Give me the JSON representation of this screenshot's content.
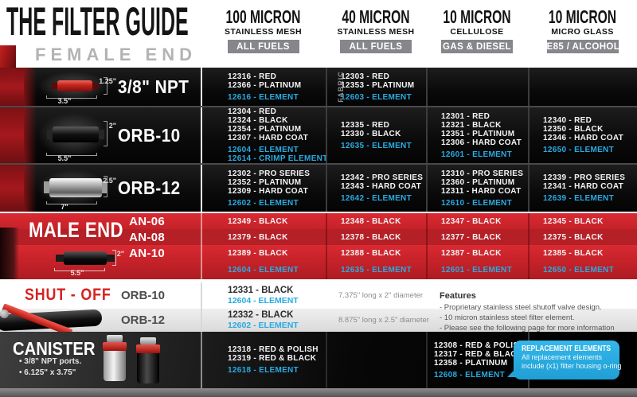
{
  "page": {
    "title": "THE FILTER GUIDE",
    "subtitle": "FEMALE END"
  },
  "columns": [
    {
      "micron": "100 MICRON",
      "media": "STAINLESS MESH",
      "fuel": "ALL FUELS"
    },
    {
      "micron": "40 MICRON",
      "media": "STAINLESS MESH",
      "fuel": "ALL FUELS"
    },
    {
      "micron": "10 MICRON",
      "media": "CELLULOSE",
      "fuel": "GAS & DIESEL"
    },
    {
      "micron": "10 MICRON",
      "media": "MICRO GLASS",
      "fuel": "E85 / ALCOHOL"
    }
  ],
  "female_end": {
    "rows": [
      {
        "label": "3/8\" NPT",
        "dims": {
          "height": "1.25\"",
          "length": "3.5\""
        },
        "cells": [
          {
            "parts": [
              "12316 - RED",
              "12366 - PLATINUM"
            ],
            "elements": [
              "12616 - ELEMENT"
            ]
          },
          {
            "tag": "FABRIC",
            "parts": [
              "12303 - RED",
              "12353 - PLATINUM"
            ],
            "elements": [
              "12603 - ELEMENT"
            ]
          },
          {
            "parts": [],
            "elements": []
          },
          {
            "parts": [],
            "elements": []
          }
        ]
      },
      {
        "label": "ORB-10",
        "dims": {
          "height": "2\"",
          "length": "5.5\""
        },
        "cells": [
          {
            "parts": [
              "12304 - RED",
              "12324 - BLACK",
              "12354 - PLATINUM",
              "12307 - HARD COAT"
            ],
            "elements": [
              "12604 - ELEMENT",
              "12614 - CRIMP ELEMENT"
            ]
          },
          {
            "parts": [
              "12335 - RED",
              "12330 - BLACK"
            ],
            "elements": [
              "12635 - ELEMENT"
            ]
          },
          {
            "parts": [
              "12301 - RED",
              "12321 - BLACK",
              "12351 - PLATINUM",
              "12306 - HARD COAT"
            ],
            "elements": [
              "12601 - ELEMENT"
            ]
          },
          {
            "parts": [
              "12340 - RED",
              "12350 - BLACK",
              "12346 - HARD COAT"
            ],
            "elements": [
              "12650 - ELEMENT"
            ]
          }
        ]
      },
      {
        "label": "ORB-12",
        "dims": {
          "height": "2.5\"",
          "length": "7\""
        },
        "cells": [
          {
            "parts": [
              "12302 - PRO SERIES",
              "12352 - PLATINUM",
              "12309 - HARD COAT"
            ],
            "elements": [
              "12602 - ELEMENT"
            ]
          },
          {
            "parts": [
              "12342 - PRO SERIES",
              "12343 - HARD COAT"
            ],
            "elements": [
              "12642 - ELEMENT"
            ]
          },
          {
            "parts": [
              "12310 - PRO SERIES",
              "12360 - PLATINUM",
              "12311 - HARD COAT"
            ],
            "elements": [
              "12610 - ELEMENT"
            ]
          },
          {
            "parts": [
              "12339 - PRO SERIES",
              "12341 - HARD COAT"
            ],
            "elements": [
              "12639 - ELEMENT"
            ]
          }
        ]
      }
    ]
  },
  "male_end": {
    "title": "MALE END",
    "dims": {
      "height": "2\"",
      "length": "5.5\""
    },
    "rows": [
      {
        "label": "AN-06",
        "parts": [
          "12349 - BLACK",
          "12348 - BLACK",
          "12347 - BLACK",
          "12345 - BLACK"
        ]
      },
      {
        "label": "AN-08",
        "parts": [
          "12379 - BLACK",
          "12378 - BLACK",
          "12377 - BLACK",
          "12375 - BLACK"
        ]
      },
      {
        "label": "AN-10",
        "parts": [
          "12389 - BLACK",
          "12388 - BLACK",
          "12387 - BLACK",
          "12385 - BLACK"
        ]
      },
      {
        "label": "",
        "parts": [
          "12604 - ELEMENT",
          "12635 - ELEMENT",
          "12601 - ELEMENT",
          "12650 - ELEMENT"
        ]
      }
    ]
  },
  "shut_off": {
    "title": "SHUT - OFF",
    "rows": [
      {
        "label": "ORB-10",
        "part": "12331 - BLACK",
        "element": "12604 - ELEMENT",
        "size": "7.375\" long x 2\" diameter"
      },
      {
        "label": "ORB-12",
        "part": "12332 - BLACK",
        "element": "12602 - ELEMENT",
        "size": "8.875\" long x 2.5\" diameter"
      }
    ],
    "features": {
      "title": "Features",
      "items": [
        "- Proprietary stainless steel shutoff valve design.",
        "- 10 micron stainless steel filter element.",
        "- Please see the following page for more information"
      ]
    }
  },
  "canister": {
    "title": "CANISTER",
    "bullets": [
      "• 3/8\" NPT ports.",
      "• 6.125\" x 3.75\""
    ],
    "cells": [
      {
        "parts": [
          "12318 - RED & POLISH",
          "12319 - RED & BLACK"
        ],
        "elements": [
          "12618 - ELEMENT"
        ]
      },
      {
        "parts": [],
        "elements": []
      },
      {
        "parts": [
          "12308 - RED & POLISH",
          "12317 - RED & BLACK",
          "12358 - PLATINUM"
        ],
        "elements": [
          "12608 - ELEMENT"
        ]
      }
    ],
    "callout": {
      "title": "REPLACEMENT ELEMENTS",
      "lines": [
        "All replacement elements",
        "include (x1) filter housing o-ring"
      ]
    }
  },
  "colors": {
    "element_blue": "#29abe2",
    "brand_red": "#cc2127",
    "badge_gray": "#85878a"
  }
}
